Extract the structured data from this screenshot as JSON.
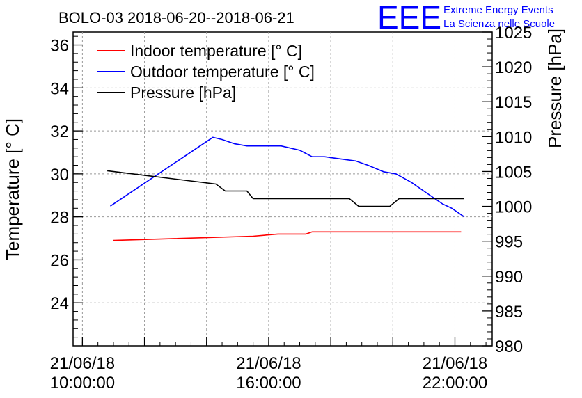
{
  "chart_data": {
    "type": "line",
    "title": "BOLO-03 2018-06-20--2018-06-21",
    "ylabel_left": "Temperature [° C]",
    "ylabel_right": "Pressure [hPa]",
    "xlabel": "",
    "x_tick_labels": [
      [
        "21/06/18",
        "10:00:00"
      ],
      [
        "21/06/18",
        "16:00:00"
      ],
      [
        "21/06/18",
        "22:00:00"
      ]
    ],
    "y_left_ticks": [
      "24",
      "26",
      "28",
      "30",
      "32",
      "34",
      "36"
    ],
    "y_right_ticks": [
      "980",
      "985",
      "990",
      "995",
      "1000",
      "1005",
      "1010",
      "1015",
      "1020",
      "1025"
    ],
    "y_left_lim": [
      22.0,
      36.6
    ],
    "y_right_lim": [
      980,
      1025
    ],
    "x_lim_hours": [
      9.7,
      23.2
    ],
    "grid": true,
    "legend_position": "top-left",
    "series": [
      {
        "name": "Indoor temperature [° C]",
        "axis": "left",
        "color": "#ff0000",
        "x": [
          11.0,
          15.5,
          16.3,
          17.2,
          17.4,
          21.0,
          22.2
        ],
        "y": [
          26.9,
          27.1,
          27.2,
          27.2,
          27.3,
          27.3,
          27.3
        ]
      },
      {
        "name": "Outdoor temperature [° C]",
        "axis": "left",
        "color": "#0000ff",
        "x": [
          10.9,
          14.2,
          14.5,
          14.9,
          15.3,
          15.7,
          16.0,
          16.4,
          17.0,
          17.4,
          17.8,
          18.3,
          18.8,
          19.2,
          19.7,
          20.1,
          20.6,
          21.0,
          21.3,
          21.6,
          21.9,
          22.3
        ],
        "y": [
          28.5,
          31.7,
          31.6,
          31.4,
          31.3,
          31.3,
          31.3,
          31.3,
          31.1,
          30.8,
          30.8,
          30.7,
          30.6,
          30.4,
          30.1,
          30.0,
          29.6,
          29.2,
          28.9,
          28.6,
          28.4,
          28.0
        ],
        "values": [
          28.5,
          31.7,
          31.6,
          31.4,
          31.3,
          31.3,
          31.3,
          31.3,
          31.1,
          30.8,
          30.8,
          30.7,
          30.6,
          30.4,
          30.1,
          30.0,
          29.6,
          29.2,
          28.9,
          28.6,
          28.4,
          28.0
        ]
      },
      {
        "name": "Pressure [hPa]",
        "axis": "right",
        "color": "#000000",
        "x": [
          10.8,
          14.3,
          14.6,
          15.3,
          15.5,
          18.6,
          18.9,
          19.9,
          20.2,
          22.3
        ],
        "y": [
          1005.1,
          1003.2,
          1002.2,
          1002.2,
          1001.1,
          1001.1,
          1000.0,
          1000.0,
          1001.1,
          1001.1
        ]
      }
    ]
  },
  "logo": {
    "mark": "EEE",
    "line1": "Extreme Energy Events",
    "line2": "La Scienza nelle Scuole",
    "color": "#0000ff"
  }
}
